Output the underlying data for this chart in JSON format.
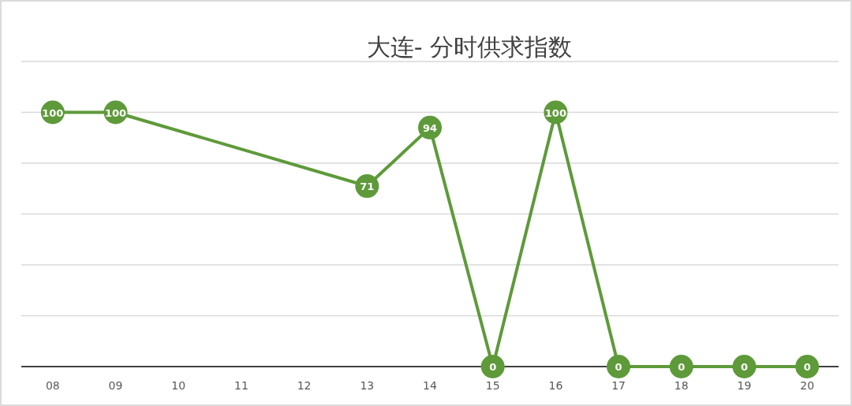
{
  "chart_data": {
    "type": "line",
    "title": "大连- 分时供求指数",
    "categories": [
      "08",
      "09",
      "10",
      "11",
      "12",
      "13",
      "14",
      "15",
      "16",
      "17",
      "18",
      "19",
      "20"
    ],
    "series": [
      {
        "color": "#5e9a3a",
        "values": [
          100,
          100,
          null,
          null,
          null,
          71,
          94,
          0,
          100,
          0,
          0,
          0,
          0
        ]
      }
    ],
    "ylim": [
      0,
      120
    ],
    "yticks": [
      {
        "value": 0,
        "label": null
      },
      {
        "value": 20,
        "label": null
      },
      {
        "value": 40,
        "label": null
      },
      {
        "value": 60,
        "label": null
      },
      {
        "value": 80,
        "label": null
      },
      {
        "value": 100,
        "label": null
      },
      {
        "value": 120,
        "label": null
      }
    ],
    "grid": "y",
    "data_labels": true,
    "marker": "circle",
    "line_style": "solid"
  }
}
